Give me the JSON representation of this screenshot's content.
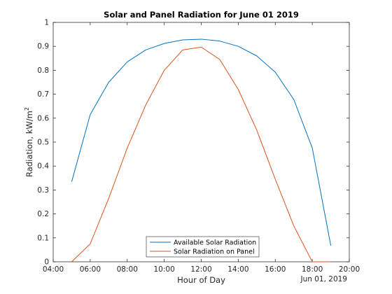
{
  "chart_data": {
    "type": "line",
    "title": "Solar and Panel Radiation for June 01 2019",
    "xlabel": "Hour of Day",
    "ylabel": "Radiation, kW/m",
    "ylabel_superscript": "2",
    "date_label": "Jun 01, 2019",
    "xlim": [
      "04:00",
      "20:00"
    ],
    "ylim": [
      0,
      1
    ],
    "x_ticks": [
      "04:00",
      "06:00",
      "08:00",
      "10:00",
      "12:00",
      "14:00",
      "16:00",
      "18:00",
      "20:00"
    ],
    "y_ticks": [
      "0",
      "0.1",
      "0.2",
      "0.3",
      "0.4",
      "0.5",
      "0.6",
      "0.7",
      "0.8",
      "0.9",
      "1"
    ],
    "grid": false,
    "legend_position": "bottom-center",
    "series": [
      {
        "name": "Available Solar Radiation",
        "color": "#0072BD",
        "points": [
          [
            "05:00",
            0.335
          ],
          [
            "06:00",
            0.615
          ],
          [
            "07:00",
            0.75
          ],
          [
            "08:00",
            0.835
          ],
          [
            "09:00",
            0.885
          ],
          [
            "10:00",
            0.912
          ],
          [
            "11:00",
            0.927
          ],
          [
            "12:00",
            0.93
          ],
          [
            "13:00",
            0.922
          ],
          [
            "14:00",
            0.9
          ],
          [
            "15:00",
            0.86
          ],
          [
            "16:00",
            0.792
          ],
          [
            "17:00",
            0.678
          ],
          [
            "18:00",
            0.475
          ],
          [
            "19:00",
            0.068
          ]
        ]
      },
      {
        "name": "Solar Radiation on Panel",
        "color": "#D95319",
        "points": [
          [
            "05:00",
            0.0
          ],
          [
            "06:00",
            0.075
          ],
          [
            "07:00",
            0.265
          ],
          [
            "08:00",
            0.475
          ],
          [
            "09:00",
            0.655
          ],
          [
            "10:00",
            0.8
          ],
          [
            "11:00",
            0.885
          ],
          [
            "12:00",
            0.897
          ],
          [
            "13:00",
            0.845
          ],
          [
            "14:00",
            0.72
          ],
          [
            "15:00",
            0.55
          ],
          [
            "16:00",
            0.345
          ],
          [
            "17:00",
            0.15
          ],
          [
            "18:00",
            0.0
          ],
          [
            "19:00",
            0.0
          ]
        ]
      }
    ]
  }
}
